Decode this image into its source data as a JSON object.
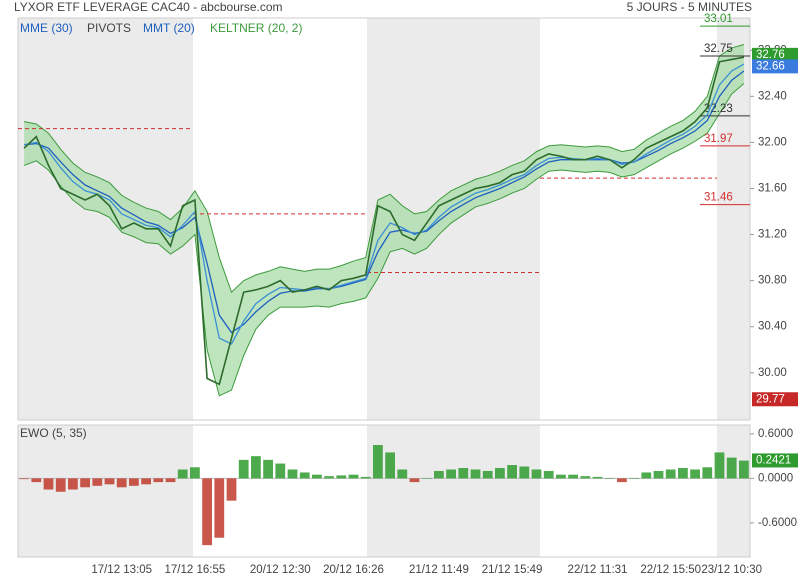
{
  "chart_data": {
    "type": "line",
    "title": "LYXOR ETF LEVERAGE CAC40 - abcbourse.com",
    "subtitle": "5 JOURS - 5 MINUTES",
    "categories": [
      null,
      null,
      null,
      null,
      null,
      null,
      null,
      null,
      "17/12 13:05",
      null,
      null,
      null,
      null,
      null,
      "17/12 16:55",
      null,
      null,
      null,
      null,
      null,
      null,
      "20/12 12:30",
      null,
      null,
      null,
      null,
      null,
      "20/12 16:26",
      null,
      null,
      null,
      null,
      null,
      null,
      "21/12 11:49",
      null,
      null,
      null,
      null,
      null,
      "21/12 15:49",
      null,
      null,
      null,
      null,
      null,
      null,
      "22/12 11:31",
      null,
      null,
      null,
      null,
      null,
      "22/12 15:50",
      null,
      null,
      null,
      null,
      "23/12 10:30",
      null
    ],
    "ylim": [
      29.59,
      33.08
    ],
    "yticks": [
      {
        "value": 32.8,
        "label": "32.80"
      },
      {
        "value": 32.4,
        "label": "32.40"
      },
      {
        "value": 32.0,
        "label": "32.00"
      },
      {
        "value": 31.6,
        "label": "31.60"
      },
      {
        "value": 31.2,
        "label": "31.20"
      },
      {
        "value": 30.8,
        "label": "30.80"
      },
      {
        "value": 30.4,
        "label": "30.40"
      },
      {
        "value": 30.0,
        "label": "30.00"
      }
    ],
    "series": [
      {
        "name": "KELTNER (20, 2)",
        "color": "#3c9a3c",
        "fill": "#a8dca8",
        "upper": [
          32.18,
          32.16,
          32.08,
          31.94,
          31.82,
          31.74,
          31.7,
          31.65,
          31.54,
          31.48,
          31.43,
          31.4,
          31.33,
          31.43,
          31.58,
          31.4,
          31.0,
          30.7,
          30.8,
          30.85,
          30.88,
          30.92,
          30.9,
          30.88,
          30.9,
          30.9,
          30.93,
          30.97,
          31.0,
          31.5,
          31.55,
          31.45,
          31.38,
          31.4,
          31.5,
          31.58,
          31.63,
          31.68,
          31.71,
          31.75,
          31.8,
          31.84,
          31.92,
          31.97,
          31.98,
          31.97,
          31.96,
          31.97,
          31.96,
          31.92,
          31.94,
          32.02,
          32.08,
          32.14,
          32.19,
          32.27,
          32.4,
          32.75,
          32.82,
          32.85
        ],
        "lower": [
          31.8,
          31.84,
          31.76,
          31.62,
          31.5,
          31.42,
          31.4,
          31.35,
          31.22,
          31.18,
          31.13,
          31.12,
          31.03,
          31.1,
          31.2,
          30.2,
          29.8,
          29.85,
          30.15,
          30.38,
          30.5,
          30.57,
          30.57,
          30.57,
          30.58,
          30.57,
          30.6,
          30.62,
          30.65,
          30.82,
          31.05,
          31.08,
          31.03,
          31.08,
          31.2,
          31.3,
          31.37,
          31.44,
          31.47,
          31.51,
          31.56,
          31.6,
          31.68,
          31.75,
          31.76,
          31.75,
          31.74,
          31.75,
          31.74,
          31.7,
          31.72,
          31.78,
          31.84,
          31.9,
          31.95,
          32.01,
          32.08,
          32.25,
          32.42,
          32.51
        ]
      },
      {
        "name": "MME (30)",
        "color": "#1f5fbf",
        "values": [
          31.98,
          31.99,
          31.95,
          31.83,
          31.72,
          31.63,
          31.58,
          31.53,
          31.43,
          31.37,
          31.31,
          31.28,
          31.21,
          31.26,
          31.35,
          30.95,
          30.5,
          30.35,
          30.42,
          30.53,
          30.62,
          30.69,
          30.71,
          30.71,
          30.73,
          30.73,
          30.75,
          30.78,
          30.81,
          31.05,
          31.22,
          31.24,
          31.21,
          31.23,
          31.32,
          31.4,
          31.46,
          31.52,
          31.56,
          31.6,
          31.65,
          31.7,
          31.77,
          31.83,
          31.85,
          31.85,
          31.85,
          31.85,
          31.85,
          31.82,
          31.83,
          31.88,
          31.93,
          31.99,
          32.04,
          32.1,
          32.19,
          32.4,
          32.54,
          32.62
        ]
      },
      {
        "name": "MMT (20)",
        "color": "#3a8fd6",
        "values": [
          31.98,
          32.0,
          31.92,
          31.78,
          31.66,
          31.58,
          31.55,
          31.5,
          31.38,
          31.33,
          31.28,
          31.26,
          31.18,
          31.28,
          31.4,
          30.8,
          30.3,
          30.25,
          30.45,
          30.6,
          30.68,
          30.74,
          30.73,
          30.72,
          30.74,
          30.73,
          30.76,
          30.79,
          30.82,
          31.15,
          31.3,
          31.26,
          31.2,
          31.24,
          31.35,
          31.44,
          31.5,
          31.56,
          31.59,
          31.63,
          31.68,
          31.72,
          31.8,
          31.86,
          31.87,
          31.86,
          31.85,
          31.86,
          31.85,
          31.81,
          31.83,
          31.9,
          31.96,
          32.02,
          32.07,
          32.14,
          32.24,
          32.5,
          32.62,
          32.68
        ]
      }
    ],
    "close": {
      "color": "#2d6b2d",
      "values": [
        31.95,
        32.05,
        31.8,
        31.6,
        31.55,
        31.5,
        31.55,
        31.45,
        31.25,
        31.3,
        31.25,
        31.25,
        31.1,
        31.45,
        31.5,
        29.95,
        29.9,
        30.3,
        30.7,
        30.72,
        30.75,
        30.8,
        30.7,
        30.72,
        30.75,
        30.72,
        30.8,
        30.82,
        30.85,
        31.45,
        31.4,
        31.2,
        31.15,
        31.3,
        31.45,
        31.5,
        31.55,
        31.6,
        31.62,
        31.65,
        31.72,
        31.75,
        31.85,
        31.9,
        31.88,
        31.85,
        31.85,
        31.88,
        31.85,
        31.78,
        31.85,
        31.95,
        32.0,
        32.05,
        32.1,
        32.18,
        32.3,
        32.7,
        32.72,
        32.74
      ]
    },
    "pivots": {
      "name": "PIVOTS",
      "color": "#d32f2f",
      "levels": [
        32.12,
        31.38,
        30.87,
        31.69
      ]
    },
    "current_pivots": [
      {
        "value": 33.01,
        "label": "33.01",
        "color": "#2e9b2e"
      },
      {
        "value": 32.75,
        "label": "32.75",
        "color": "#333333"
      },
      {
        "value": 32.23,
        "label": "32.23",
        "color": "#333333"
      },
      {
        "value": 31.97,
        "label": "31.97",
        "color": "#d32f2f"
      },
      {
        "value": 31.46,
        "label": "31.46",
        "color": "#d32f2f"
      }
    ],
    "price_tags": [
      {
        "value": 32.76,
        "label": "32.76",
        "color": "#2e9b2e"
      },
      {
        "value": 32.66,
        "label": "32.66",
        "color": "#3a7be0"
      },
      {
        "value": 29.77,
        "label": "29.77",
        "color": "#c62828"
      }
    ],
    "ewo": {
      "name": "EWO (5, 35)",
      "up_color": "#2e9b2e",
      "down_color": "#c0392b",
      "ylim": [
        -1.06,
        0.72
      ],
      "yticks": [
        {
          "value": 0.6,
          "label": "0.6000"
        },
        {
          "value": 0,
          "label": "0.0000"
        },
        {
          "value": -0.6,
          "label": "-0.6000"
        }
      ],
      "values": [
        -0.01,
        -0.05,
        -0.15,
        -0.18,
        -0.15,
        -0.12,
        -0.1,
        -0.08,
        -0.12,
        -0.1,
        -0.08,
        -0.05,
        -0.05,
        0.12,
        0.15,
        -0.9,
        -0.8,
        -0.3,
        0.25,
        0.3,
        0.25,
        0.2,
        0.12,
        0.08,
        0.05,
        0.03,
        0.04,
        0.05,
        0.02,
        0.45,
        0.35,
        0.12,
        -0.05,
        0.0,
        0.1,
        0.12,
        0.14,
        0.12,
        0.1,
        0.14,
        0.18,
        0.16,
        0.12,
        0.1,
        0.05,
        0.05,
        0.03,
        0.02,
        0.0,
        -0.05,
        0.0,
        0.08,
        0.1,
        0.12,
        0.14,
        0.12,
        0.15,
        0.35,
        0.28,
        0.24
      ],
      "last": {
        "value": 0.2421,
        "label": "0.2421"
      }
    }
  }
}
